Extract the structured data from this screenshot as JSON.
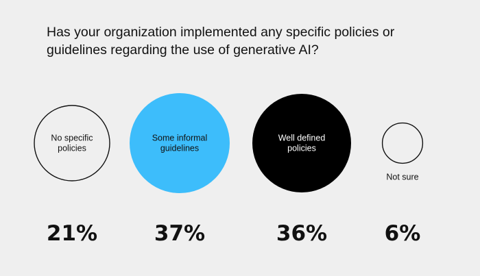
{
  "title_lines": [
    "Has your organization implemented any specific policies or",
    "guidelines regarding the use of generative AI?"
  ],
  "colors": {
    "background": "#efefef",
    "outline": "#111111",
    "accent_blue": "#3dbdfb",
    "black": "#000000"
  },
  "chart_data": {
    "type": "bubble",
    "title": "Has your organization implemented any specific policies or guidelines regarding the use of generative AI?",
    "categories": [
      "No specific policies",
      "Some informal guidelines",
      "Well defined policies",
      "Not sure"
    ],
    "values": [
      21,
      37,
      36,
      6
    ],
    "value_labels": [
      "21%",
      "37%",
      "36%",
      "6%"
    ],
    "label_lines": [
      [
        "No specific",
        "policies"
      ],
      [
        "Some informal",
        "guidelines"
      ],
      [
        "Well defined",
        "policies"
      ],
      [
        "Not sure"
      ]
    ],
    "fills": [
      "none",
      "#3dbdfb",
      "#000000",
      "none"
    ],
    "label_colors": [
      "#111111",
      "#111111",
      "#ffffff",
      "#111111"
    ],
    "label_position": [
      "inside",
      "inside",
      "inside",
      "below"
    ]
  }
}
